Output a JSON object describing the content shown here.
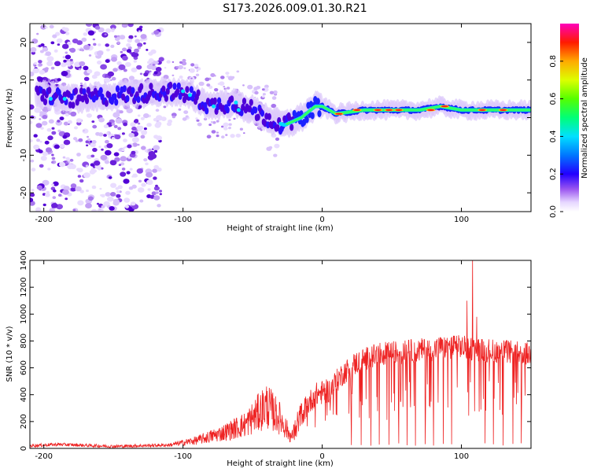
{
  "title": "S173.2026.009.01.30.R21",
  "chart_data": [
    {
      "type": "heatmap",
      "name": "spectrogram",
      "xlabel": "Height of straight line (km)",
      "ylabel": "Frequency (Hz)",
      "xlim": [
        -210,
        150
      ],
      "ylim": [
        -25,
        25
      ],
      "xticks": [
        -200,
        -100,
        0,
        100
      ],
      "yticks": [
        -20,
        -10,
        0,
        10,
        20
      ],
      "ridge_frequency_hz": [
        {
          "x": -200,
          "y": 6
        },
        {
          "x": -180,
          "y": 5
        },
        {
          "x": -110,
          "y": 7
        },
        {
          "x": -95,
          "y": 6
        },
        {
          "x": -80,
          "y": 3
        },
        {
          "x": -65,
          "y": 4
        },
        {
          "x": -50,
          "y": 2
        },
        {
          "x": -35,
          "y": -1
        },
        {
          "x": -27,
          "y": -2
        },
        {
          "x": -15,
          "y": 0
        },
        {
          "x": -5,
          "y": 3
        },
        {
          "x": 0,
          "y": 3
        },
        {
          "x": 10,
          "y": 1
        },
        {
          "x": 30,
          "y": 2
        },
        {
          "x": 70,
          "y": 2
        },
        {
          "x": 85,
          "y": 3
        },
        {
          "x": 100,
          "y": 2
        },
        {
          "x": 150,
          "y": 2
        }
      ],
      "colorbar": {
        "label": "Normalized spectral amplitude",
        "range": [
          0,
          1
        ],
        "ticks": [
          "0.0",
          "0.2",
          "0.4",
          "0.6",
          "0.8"
        ],
        "stops": [
          "#ffffff",
          "#c9a6f5",
          "#6b1ee0",
          "#0000ff",
          "#00e5ff",
          "#00ff66",
          "#c8ff00",
          "#ffcc00",
          "#ff2a00",
          "#ff00cc"
        ]
      }
    },
    {
      "type": "line",
      "name": "snr",
      "xlabel": "Height of straight line (km)",
      "ylabel": "SNR (10 * v/v)",
      "xlim": [
        -210,
        150
      ],
      "ylim": [
        0,
        1400
      ],
      "xticks": [
        -200,
        -100,
        0,
        100
      ],
      "yticks": [
        0,
        200,
        400,
        600,
        800,
        1000,
        1200,
        1400
      ],
      "color": "#ee2222",
      "envelope": [
        {
          "x": -210,
          "y": 20
        },
        {
          "x": -190,
          "y": 30
        },
        {
          "x": -150,
          "y": 15
        },
        {
          "x": -110,
          "y": 25
        },
        {
          "x": -90,
          "y": 60
        },
        {
          "x": -70,
          "y": 120
        },
        {
          "x": -55,
          "y": 180
        },
        {
          "x": -40,
          "y": 320
        },
        {
          "x": -30,
          "y": 220
        },
        {
          "x": -22,
          "y": 80
        },
        {
          "x": -15,
          "y": 260
        },
        {
          "x": -5,
          "y": 400
        },
        {
          "x": 5,
          "y": 430
        },
        {
          "x": 15,
          "y": 560
        },
        {
          "x": 25,
          "y": 640
        },
        {
          "x": 40,
          "y": 700
        },
        {
          "x": 60,
          "y": 720
        },
        {
          "x": 80,
          "y": 740
        },
        {
          "x": 95,
          "y": 760
        },
        {
          "x": 110,
          "y": 740
        },
        {
          "x": 130,
          "y": 720
        },
        {
          "x": 150,
          "y": 700
        }
      ],
      "spikes": [
        {
          "x": 108,
          "y": 1420
        },
        {
          "x": 104,
          "y": 1100
        },
        {
          "x": 111,
          "y": 980
        }
      ],
      "dropouts_x": [
        21,
        28,
        35,
        41,
        48,
        55,
        61,
        67,
        74,
        80,
        87,
        93,
        117,
        123,
        130,
        137,
        143
      ]
    }
  ]
}
